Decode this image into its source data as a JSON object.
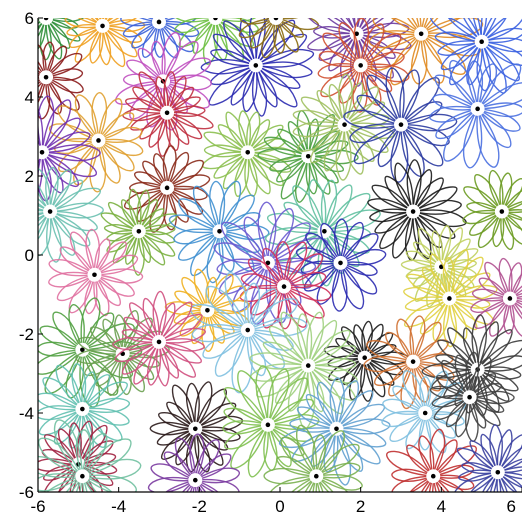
{
  "chart_data": {
    "type": "scatter",
    "description_style": "petal-field",
    "xlim": [
      -6,
      6
    ],
    "ylim": [
      -6,
      6
    ],
    "x_ticks": [
      -6,
      -4,
      -2,
      0,
      2,
      4,
      6
    ],
    "y_ticks": [
      -6,
      -4,
      -2,
      0,
      2,
      4,
      6
    ],
    "x_tick_labels": [
      "-6",
      "-4",
      "-2",
      "0",
      "2",
      "4",
      "6"
    ],
    "y_tick_labels": [
      "-6",
      "-4",
      "-2",
      "0",
      "2",
      "4",
      "6"
    ],
    "grid": false,
    "legend": "none",
    "title": "",
    "xlabel": "",
    "ylabel": "",
    "cells": [
      {
        "x": -5.8,
        "y": 6.0,
        "color": "#2f8f3a"
      },
      {
        "x": -4.4,
        "y": 5.8,
        "color": "#f0a020"
      },
      {
        "x": -3.0,
        "y": 5.9,
        "color": "#3a60d8"
      },
      {
        "x": -1.6,
        "y": 6.0,
        "color": "#6cbf40"
      },
      {
        "x": -0.6,
        "y": 4.8,
        "color": "#2a2ab0"
      },
      {
        "x": -0.1,
        "y": 6.0,
        "color": "#8a6a10"
      },
      {
        "x": 1.9,
        "y": 5.6,
        "color": "#6a3aa0"
      },
      {
        "x": 3.5,
        "y": 5.6,
        "color": "#e08a20"
      },
      {
        "x": 5.0,
        "y": 5.4,
        "color": "#3a60e0"
      },
      {
        "x": 2.0,
        "y": 4.8,
        "color": "#d05030"
      },
      {
        "x": -2.9,
        "y": 4.4,
        "color": "#c050c0"
      },
      {
        "x": -5.8,
        "y": 4.5,
        "color": "#8a1a1a"
      },
      {
        "x": -2.8,
        "y": 3.6,
        "color": "#c03040"
      },
      {
        "x": -4.5,
        "y": 2.9,
        "color": "#e0a030"
      },
      {
        "x": -5.9,
        "y": 2.6,
        "color": "#7030b0"
      },
      {
        "x": -0.8,
        "y": 2.6,
        "color": "#8cc050"
      },
      {
        "x": 0.7,
        "y": 2.5,
        "color": "#4aa040"
      },
      {
        "x": 1.6,
        "y": 3.3,
        "color": "#a0c060"
      },
      {
        "x": 3.0,
        "y": 3.3,
        "color": "#2a3aa0"
      },
      {
        "x": 4.9,
        "y": 3.7,
        "color": "#4a70e0"
      },
      {
        "x": -2.8,
        "y": 1.7,
        "color": "#8a2a1a"
      },
      {
        "x": -5.7,
        "y": 1.1,
        "color": "#6ac0b0"
      },
      {
        "x": -3.5,
        "y": 0.6,
        "color": "#7ab040"
      },
      {
        "x": -1.5,
        "y": 0.6,
        "color": "#4090d0"
      },
      {
        "x": 1.1,
        "y": 0.6,
        "color": "#60c0a0"
      },
      {
        "x": 3.3,
        "y": 1.1,
        "color": "#1a1a1a"
      },
      {
        "x": 5.5,
        "y": 1.1,
        "color": "#6a9a20"
      },
      {
        "x": -4.6,
        "y": -0.5,
        "color": "#e070a0"
      },
      {
        "x": -0.3,
        "y": -0.2,
        "color": "#6a5ad0"
      },
      {
        "x": 1.5,
        "y": -0.2,
        "color": "#2a2ab0"
      },
      {
        "x": 4.0,
        "y": -0.3,
        "color": "#c0d060"
      },
      {
        "x": 0.1,
        "y": -0.8,
        "color": "#d0305a"
      },
      {
        "x": -1.8,
        "y": -1.4,
        "color": "#f0b020"
      },
      {
        "x": -0.8,
        "y": -1.9,
        "color": "#80c0e0"
      },
      {
        "x": 4.2,
        "y": -1.1,
        "color": "#e0d040"
      },
      {
        "x": 5.7,
        "y": -1.1,
        "color": "#b05090"
      },
      {
        "x": -4.9,
        "y": -2.4,
        "color": "#50a040"
      },
      {
        "x": -3.9,
        "y": -2.5,
        "color": "#6aa050"
      },
      {
        "x": -3.0,
        "y": -2.2,
        "color": "#d05080"
      },
      {
        "x": 2.1,
        "y": -2.6,
        "color": "#1a1a1a"
      },
      {
        "x": 3.3,
        "y": -2.7,
        "color": "#d07030"
      },
      {
        "x": 0.7,
        "y": -2.8,
        "color": "#a0d080"
      },
      {
        "x": 4.9,
        "y": -2.9,
        "color": "#3a3a3a"
      },
      {
        "x": -4.9,
        "y": -3.9,
        "color": "#60c0b0"
      },
      {
        "x": -2.1,
        "y": -4.4,
        "color": "#2a1a1a"
      },
      {
        "x": -0.3,
        "y": -4.3,
        "color": "#80c050"
      },
      {
        "x": 1.4,
        "y": -4.4,
        "color": "#60a0d0"
      },
      {
        "x": 3.6,
        "y": -4.0,
        "color": "#80c0e0"
      },
      {
        "x": 4.7,
        "y": -3.6,
        "color": "#404040"
      },
      {
        "x": -5.0,
        "y": -5.3,
        "color": "#a02040"
      },
      {
        "x": -4.9,
        "y": -5.6,
        "color": "#70c0a0"
      },
      {
        "x": -2.1,
        "y": -5.7,
        "color": "#7a3aa0"
      },
      {
        "x": 0.9,
        "y": -5.6,
        "color": "#7ab050"
      },
      {
        "x": 3.8,
        "y": -5.6,
        "color": "#c03030"
      },
      {
        "x": 5.4,
        "y": -5.5,
        "color": "#3a40a0"
      }
    ]
  }
}
